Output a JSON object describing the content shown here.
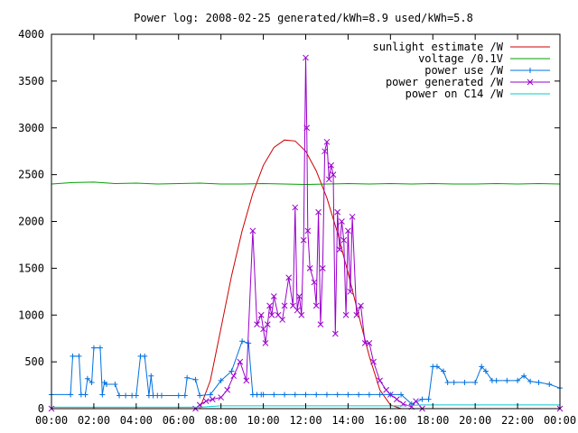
{
  "chart_data": {
    "type": "line",
    "title": "Power log: 2008-02-25 generated/kWh=8.9 used/kWh=5.8",
    "xlabel": "",
    "ylabel": "",
    "xlim": [
      0,
      24
    ],
    "ylim": [
      0,
      4000
    ],
    "x_ticks": [
      0,
      2,
      4,
      6,
      8,
      10,
      12,
      14,
      16,
      18,
      20,
      22,
      24
    ],
    "x_tick_labels": [
      "00:00",
      "02:00",
      "04:00",
      "06:00",
      "08:00",
      "10:00",
      "12:00",
      "14:00",
      "16:00",
      "18:00",
      "20:00",
      "22:00",
      "00:00"
    ],
    "y_ticks": [
      0,
      500,
      1000,
      1500,
      2000,
      2500,
      3000,
      3500,
      4000
    ],
    "y_tick_labels": [
      "0",
      "500",
      "1000",
      "1500",
      "2000",
      "2500",
      "3000",
      "3500",
      "4000"
    ],
    "legend_position": "top-right",
    "grid": false,
    "series": [
      {
        "name": "sunlight estimate /W",
        "color": "#cc0000",
        "marker": "none",
        "x": [
          7.0,
          7.5,
          8.0,
          8.5,
          9.0,
          9.5,
          10.0,
          10.5,
          11.0,
          11.5,
          12.0,
          12.5,
          13.0,
          13.5,
          14.0,
          14.5,
          15.0,
          15.5,
          16.0,
          16.5,
          17.0
        ],
        "y": [
          0,
          300,
          860,
          1420,
          1900,
          2300,
          2600,
          2790,
          2870,
          2860,
          2750,
          2540,
          2250,
          1880,
          1450,
          1000,
          560,
          200,
          40,
          0,
          0
        ]
      },
      {
        "name": "voltage /0.1V",
        "color": "#00a000",
        "marker": "none",
        "x": [
          0,
          1,
          2,
          3,
          4,
          5,
          6,
          7,
          8,
          9,
          10,
          11,
          12,
          13,
          14,
          15,
          16,
          17,
          18,
          19,
          20,
          21,
          22,
          23,
          24
        ],
        "y": [
          2400,
          2415,
          2420,
          2405,
          2410,
          2400,
          2405,
          2410,
          2400,
          2400,
          2405,
          2400,
          2395,
          2400,
          2405,
          2400,
          2405,
          2400,
          2405,
          2400,
          2400,
          2405,
          2400,
          2405,
          2400
        ]
      },
      {
        "name": "power use /W",
        "color": "#0070e0",
        "marker": "plus",
        "x": [
          0,
          0.9,
          1.0,
          1.3,
          1.4,
          1.6,
          1.7,
          1.9,
          2.0,
          2.3,
          2.4,
          2.5,
          2.6,
          3.0,
          3.2,
          3.5,
          3.8,
          4.0,
          4.2,
          4.4,
          4.6,
          4.7,
          4.8,
          5.0,
          5.2,
          6.0,
          6.3,
          6.4,
          6.8,
          7.0,
          7.5,
          8.0,
          8.5,
          9.0,
          9.3,
          9.5,
          9.7,
          9.9,
          10.0,
          10.5,
          11.0,
          11.5,
          12.0,
          12.5,
          13.0,
          13.5,
          14.0,
          14.5,
          15.0,
          15.5,
          16.0,
          16.5,
          17.0,
          17.5,
          17.8,
          18.0,
          18.2,
          18.5,
          18.7,
          19.0,
          19.5,
          20.0,
          20.3,
          20.5,
          20.8,
          21.0,
          21.5,
          22.0,
          22.3,
          22.6,
          23.0,
          23.5,
          24.0
        ],
        "y": [
          150,
          150,
          560,
          560,
          150,
          150,
          320,
          280,
          650,
          650,
          150,
          280,
          260,
          260,
          140,
          140,
          140,
          140,
          560,
          560,
          140,
          350,
          140,
          140,
          140,
          140,
          140,
          330,
          310,
          140,
          150,
          300,
          400,
          720,
          700,
          150,
          150,
          150,
          150,
          150,
          150,
          150,
          150,
          150,
          150,
          150,
          150,
          150,
          150,
          150,
          150,
          150,
          50,
          100,
          100,
          450,
          450,
          400,
          280,
          280,
          280,
          280,
          450,
          400,
          300,
          300,
          300,
          300,
          350,
          290,
          280,
          260,
          220
        ]
      },
      {
        "name": "power generated /W",
        "color": "#9900cc",
        "marker": "cross",
        "x": [
          0,
          6.8,
          7.0,
          7.3,
          7.6,
          8.0,
          8.3,
          8.6,
          8.9,
          9.2,
          9.5,
          9.7,
          9.9,
          10.0,
          10.1,
          10.2,
          10.3,
          10.4,
          10.5,
          10.7,
          10.9,
          11.0,
          11.2,
          11.4,
          11.5,
          11.6,
          11.7,
          11.8,
          11.9,
          12.0,
          12.05,
          12.1,
          12.2,
          12.4,
          12.5,
          12.6,
          12.7,
          12.8,
          12.9,
          13.0,
          13.1,
          13.2,
          13.3,
          13.4,
          13.5,
          13.6,
          13.7,
          13.8,
          13.9,
          14.0,
          14.1,
          14.2,
          14.4,
          14.6,
          14.8,
          15.0,
          15.2,
          15.5,
          15.8,
          16.0,
          16.3,
          16.6,
          17.0,
          17.2,
          17.5,
          24.0
        ],
        "y": [
          0,
          0,
          40,
          80,
          100,
          120,
          200,
          350,
          500,
          300,
          1900,
          900,
          1000,
          850,
          700,
          900,
          1100,
          1000,
          1200,
          1000,
          950,
          1100,
          1400,
          1100,
          2150,
          1050,
          1200,
          1000,
          1800,
          3750,
          3000,
          1900,
          1500,
          1350,
          1100,
          2100,
          900,
          1500,
          2750,
          2850,
          2450,
          2600,
          2500,
          800,
          2100,
          1700,
          2000,
          1800,
          1000,
          1900,
          1250,
          2050,
          1000,
          1100,
          700,
          700,
          500,
          300,
          200,
          150,
          100,
          50,
          20,
          80,
          0,
          0
        ]
      },
      {
        "name": "power on C14 /W",
        "color": "#00cccc",
        "marker": "none",
        "x": [
          0,
          7.0,
          8.0,
          16.5,
          17.5,
          24.0
        ],
        "y": [
          15,
          15,
          30,
          30,
          40,
          40
        ]
      }
    ]
  }
}
